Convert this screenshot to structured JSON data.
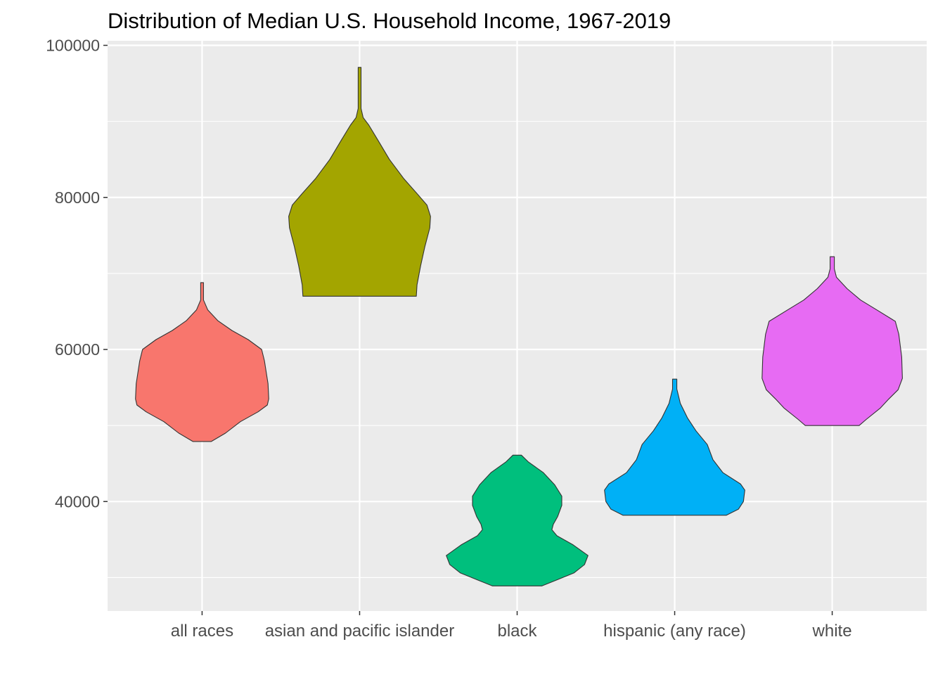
{
  "chart_data": {
    "type": "violin",
    "title": "Distribution of Median U.S. Household Income, 1967-2019",
    "xlabel": "",
    "ylabel": "",
    "ylim": [
      25600,
      100600
    ],
    "y_ticks": [
      40000,
      60000,
      80000,
      100000
    ],
    "y_tick_labels": [
      "40000",
      "60000",
      "80000",
      "100000"
    ],
    "grid": true,
    "legend": "none",
    "categories": [
      "all races",
      "asian and pacific islander",
      "black",
      "hispanic (any race)",
      "white"
    ],
    "series": [
      {
        "category": "all races",
        "color": "#F8766D",
        "min": 47900,
        "max": 68800,
        "density": [
          [
            47900,
            0.13
          ],
          [
            49000,
            0.33
          ],
          [
            50500,
            0.54
          ],
          [
            51800,
            0.79
          ],
          [
            52700,
            0.92
          ],
          [
            53500,
            0.94
          ],
          [
            55500,
            0.93
          ],
          [
            58500,
            0.88
          ],
          [
            60000,
            0.84
          ],
          [
            61300,
            0.65
          ],
          [
            62500,
            0.42
          ],
          [
            63800,
            0.22
          ],
          [
            65200,
            0.08
          ],
          [
            66500,
            0.02
          ],
          [
            68800,
            0.02
          ]
        ]
      },
      {
        "category": "asian and pacific islander",
        "color": "#A3A500",
        "min": 67000,
        "max": 97100,
        "density": [
          [
            67000,
            0.8
          ],
          [
            68500,
            0.81
          ],
          [
            71000,
            0.86
          ],
          [
            73500,
            0.92
          ],
          [
            76000,
            0.99
          ],
          [
            77500,
            1.0
          ],
          [
            79000,
            0.95
          ],
          [
            80500,
            0.81
          ],
          [
            82500,
            0.62
          ],
          [
            85000,
            0.42
          ],
          [
            87500,
            0.26
          ],
          [
            89500,
            0.13
          ],
          [
            90500,
            0.05
          ],
          [
            91700,
            0.02
          ],
          [
            97100,
            0.02
          ]
        ]
      },
      {
        "category": "black",
        "color": "#00BF7D",
        "min": 28900,
        "max": 46100,
        "density": [
          [
            28900,
            0.35
          ],
          [
            29700,
            0.56
          ],
          [
            30600,
            0.8
          ],
          [
            31700,
            0.95
          ],
          [
            32900,
            1.0
          ],
          [
            34300,
            0.79
          ],
          [
            35500,
            0.56
          ],
          [
            36300,
            0.49
          ],
          [
            37000,
            0.51
          ],
          [
            38000,
            0.57
          ],
          [
            39500,
            0.63
          ],
          [
            40700,
            0.63
          ],
          [
            42200,
            0.53
          ],
          [
            43800,
            0.37
          ],
          [
            45200,
            0.16
          ],
          [
            46100,
            0.06
          ]
        ]
      },
      {
        "category": "hispanic (any race)",
        "color": "#00B0F6",
        "min": 38200,
        "max": 56100,
        "density": [
          [
            38200,
            0.73
          ],
          [
            39000,
            0.9
          ],
          [
            40000,
            0.97
          ],
          [
            41500,
            0.99
          ],
          [
            42300,
            0.93
          ],
          [
            43800,
            0.68
          ],
          [
            45500,
            0.54
          ],
          [
            47500,
            0.46
          ],
          [
            49300,
            0.3
          ],
          [
            51000,
            0.18
          ],
          [
            52900,
            0.08
          ],
          [
            54800,
            0.03
          ],
          [
            56100,
            0.03
          ]
        ]
      },
      {
        "category": "white",
        "color": "#E76BF3",
        "min": 50000,
        "max": 72200,
        "density": [
          [
            50000,
            0.38
          ],
          [
            50800,
            0.48
          ],
          [
            52300,
            0.68
          ],
          [
            53500,
            0.8
          ],
          [
            54700,
            0.93
          ],
          [
            56200,
            0.99
          ],
          [
            59000,
            0.98
          ],
          [
            62000,
            0.94
          ],
          [
            63700,
            0.89
          ],
          [
            65200,
            0.63
          ],
          [
            66500,
            0.4
          ],
          [
            68000,
            0.21
          ],
          [
            69500,
            0.06
          ],
          [
            70600,
            0.03
          ],
          [
            72200,
            0.03
          ]
        ]
      }
    ]
  },
  "colors": {
    "panel_background": "#EBEBEB",
    "grid_major": "#FFFFFF",
    "outline": "#333333"
  }
}
